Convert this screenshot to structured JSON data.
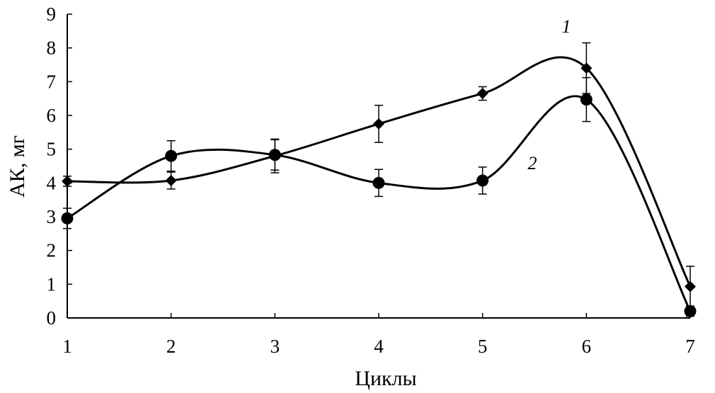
{
  "chart_data": {
    "type": "line",
    "xlabel": "Циклы",
    "ylabel": "АК, мг",
    "x": [
      1,
      2,
      3,
      4,
      5,
      6,
      7
    ],
    "xlim": [
      1,
      7
    ],
    "ylim": [
      0,
      9
    ],
    "x_ticks": [
      "1",
      "2",
      "3",
      "4",
      "5",
      "6",
      "7"
    ],
    "y_ticks": [
      "0",
      "1",
      "2",
      "3",
      "4",
      "5",
      "6",
      "7",
      "8",
      "9"
    ],
    "grid": false,
    "legend": "none",
    "smooth": true,
    "series": [
      {
        "name": "1",
        "marker": "diamond",
        "values": [
          4.05,
          4.07,
          4.8,
          5.75,
          6.65,
          7.4,
          0.93
        ],
        "error": [
          0.15,
          0.25,
          0.5,
          0.55,
          0.2,
          0.75,
          0.6
        ]
      },
      {
        "name": "2",
        "marker": "circle",
        "values": [
          2.95,
          4.8,
          4.83,
          4.0,
          4.07,
          6.47,
          0.2
        ],
        "error": [
          0.3,
          0.45,
          0.45,
          0.4,
          0.4,
          0.65,
          0.15
        ]
      }
    ],
    "colors": {
      "line": "#000000",
      "marker": "#000000"
    }
  }
}
